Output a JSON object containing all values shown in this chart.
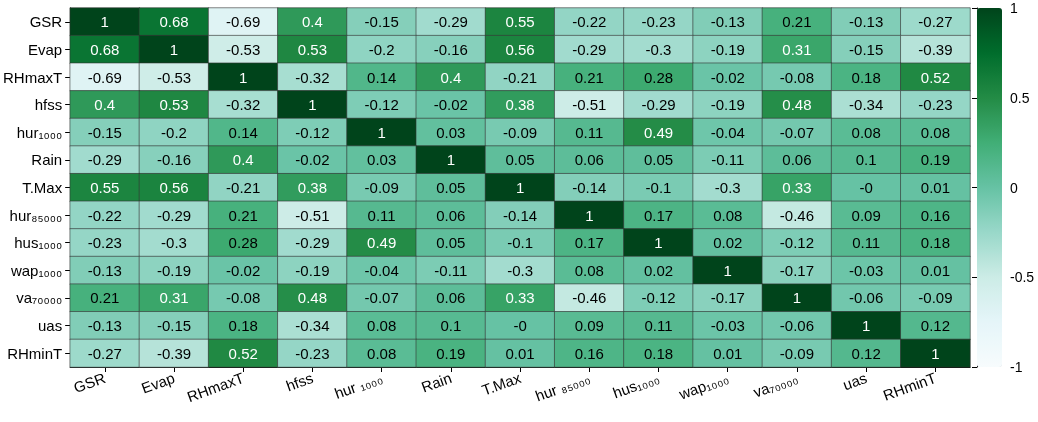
{
  "chart_data": {
    "type": "heatmap",
    "categories": [
      "GSR",
      "Evap",
      "RHmaxT",
      "hfss",
      "hur ₁₀₀₀",
      "Rain",
      "T.Max",
      "hur ₈₅₀₀₀",
      "hus₁₀₀₀",
      "wap₁₀₀₀",
      "va₇₀₀₀₀",
      "uas",
      "RHminT"
    ],
    "y_categories": [
      "GSR",
      "Evap",
      "RHmaxT",
      "hfss",
      "hur₁₀₀₀",
      "Rain",
      "T.Max",
      "hur₈₅₀₀₀",
      "hus₁₀₀₀",
      "wap₁₀₀₀",
      "va₇₀₀₀₀",
      "uas",
      "RHminT"
    ],
    "cells": [
      [
        1,
        0.68,
        -0.69,
        0.4,
        -0.15,
        -0.29,
        0.55,
        -0.22,
        -0.23,
        -0.13,
        0.21,
        -0.13,
        -0.27
      ],
      [
        0.68,
        1,
        -0.53,
        0.53,
        -0.2,
        -0.16,
        0.56,
        -0.29,
        -0.3,
        -0.19,
        0.31,
        -0.15,
        -0.39
      ],
      [
        -0.69,
        -0.53,
        1,
        -0.32,
        0.14,
        0.4,
        -0.21,
        0.21,
        0.28,
        -0.02,
        -0.08,
        0.18,
        0.52
      ],
      [
        0.4,
        0.53,
        -0.32,
        1,
        -0.12,
        -0.02,
        0.38,
        -0.51,
        -0.29,
        -0.19,
        0.48,
        -0.34,
        -0.23
      ],
      [
        -0.15,
        -0.2,
        0.14,
        -0.12,
        1,
        0.03,
        -0.09,
        0.11,
        0.49,
        -0.04,
        -0.07,
        0.08,
        0.08
      ],
      [
        -0.29,
        -0.16,
        0.4,
        -0.02,
        0.03,
        1,
        0.05,
        0.06,
        0.05,
        -0.11,
        0.06,
        0.1,
        0.19
      ],
      [
        0.55,
        0.56,
        -0.21,
        0.38,
        -0.09,
        0.05,
        1,
        -0.14,
        -0.1,
        -0.3,
        0.33,
        0,
        0.01
      ],
      [
        -0.22,
        -0.29,
        0.21,
        -0.51,
        0.11,
        0.06,
        -0.14,
        1,
        0.17,
        0.08,
        -0.46,
        0.09,
        0.16
      ],
      [
        -0.23,
        -0.3,
        0.28,
        -0.29,
        0.49,
        0.05,
        -0.1,
        0.17,
        1,
        0.02,
        -0.12,
        0.11,
        0.18
      ],
      [
        -0.13,
        -0.19,
        -0.02,
        -0.19,
        -0.04,
        -0.11,
        -0.3,
        0.08,
        0.02,
        1,
        -0.17,
        -0.03,
        0.01
      ],
      [
        0.21,
        0.31,
        -0.08,
        0.48,
        -0.07,
        0.06,
        0.33,
        -0.46,
        -0.12,
        -0.17,
        1,
        -0.06,
        -0.09
      ],
      [
        -0.13,
        -0.15,
        0.18,
        -0.34,
        0.08,
        0.1,
        0,
        0.09,
        0.11,
        -0.03,
        -0.06,
        1,
        0.12
      ],
      [
        -0.27,
        -0.39,
        0.52,
        -0.23,
        0.08,
        0.19,
        0.01,
        0.16,
        0.18,
        0.01,
        -0.09,
        0.12,
        1
      ]
    ],
    "cell_labels": [
      [
        "1",
        "0.68",
        "-0.69",
        "0.4",
        "-0.15",
        "-0.29",
        "0.55",
        "-0.22",
        "-0.23",
        "-0.13",
        "0.21",
        "-0.13",
        "-0.27"
      ],
      [
        "0.68",
        "1",
        "-0.53",
        "0.53",
        "-0.2",
        "-0.16",
        "0.56",
        "-0.29",
        "-0.3",
        "-0.19",
        "0.31",
        "-0.15",
        "-0.39"
      ],
      [
        "-0.69",
        "-0.53",
        "1",
        "-0.32",
        "0.14",
        "0.4",
        "-0.21",
        "0.21",
        "0.28",
        "-0.02",
        "-0.08",
        "0.18",
        "0.52"
      ],
      [
        "0.4",
        "0.53",
        "-0.32",
        "1",
        "-0.12",
        "-0.02",
        "0.38",
        "-0.51",
        "-0.29",
        "-0.19",
        "0.48",
        "-0.34",
        "-0.23"
      ],
      [
        "-0.15",
        "-0.2",
        "0.14",
        "-0.12",
        "1",
        "0.03",
        "-0.09",
        "0.11",
        "0.49",
        "-0.04",
        "-0.07",
        "0.08",
        "0.08"
      ],
      [
        "-0.29",
        "-0.16",
        "0.4",
        "-0.02",
        "0.03",
        "1",
        "0.05",
        "0.06",
        "0.05",
        "-0.11",
        "0.06",
        "0.1",
        "0.19"
      ],
      [
        "0.55",
        "0.56",
        "-0.21",
        "0.38",
        "-0.09",
        "0.05",
        "1",
        "-0.14",
        "-0.1",
        "-0.3",
        "0.33",
        "-0",
        "0.01"
      ],
      [
        "-0.22",
        "-0.29",
        "0.21",
        "-0.51",
        "0.11",
        "0.06",
        "-0.14",
        "1",
        "0.17",
        "0.08",
        "-0.46",
        "0.09",
        "0.16"
      ],
      [
        "-0.23",
        "-0.3",
        "0.28",
        "-0.29",
        "0.49",
        "0.05",
        "-0.1",
        "0.17",
        "1",
        "0.02",
        "-0.12",
        "0.11",
        "0.18"
      ],
      [
        "-0.13",
        "-0.19",
        "-0.02",
        "-0.19",
        "-0.04",
        "-0.11",
        "-0.3",
        "0.08",
        "0.02",
        "1",
        "-0.17",
        "-0.03",
        "0.01"
      ],
      [
        "0.21",
        "0.31",
        "-0.08",
        "0.48",
        "-0.07",
        "0.06",
        "0.33",
        "-0.46",
        "-0.12",
        "-0.17",
        "1",
        "-0.06",
        "-0.09"
      ],
      [
        "-0.13",
        "-0.15",
        "0.18",
        "-0.34",
        "0.08",
        "0.1",
        "-0",
        "0.09",
        "0.11",
        "-0.03",
        "-0.06",
        "1",
        "0.12"
      ],
      [
        "-0.27",
        "-0.39",
        "0.52",
        "-0.23",
        "0.08",
        "0.19",
        "0.01",
        "0.16",
        "0.18",
        "0.01",
        "-0.09",
        "0.12",
        "1"
      ]
    ],
    "clim": [
      -1,
      1
    ],
    "cticks": [
      -1,
      -0.5,
      0,
      0.5,
      1
    ]
  }
}
